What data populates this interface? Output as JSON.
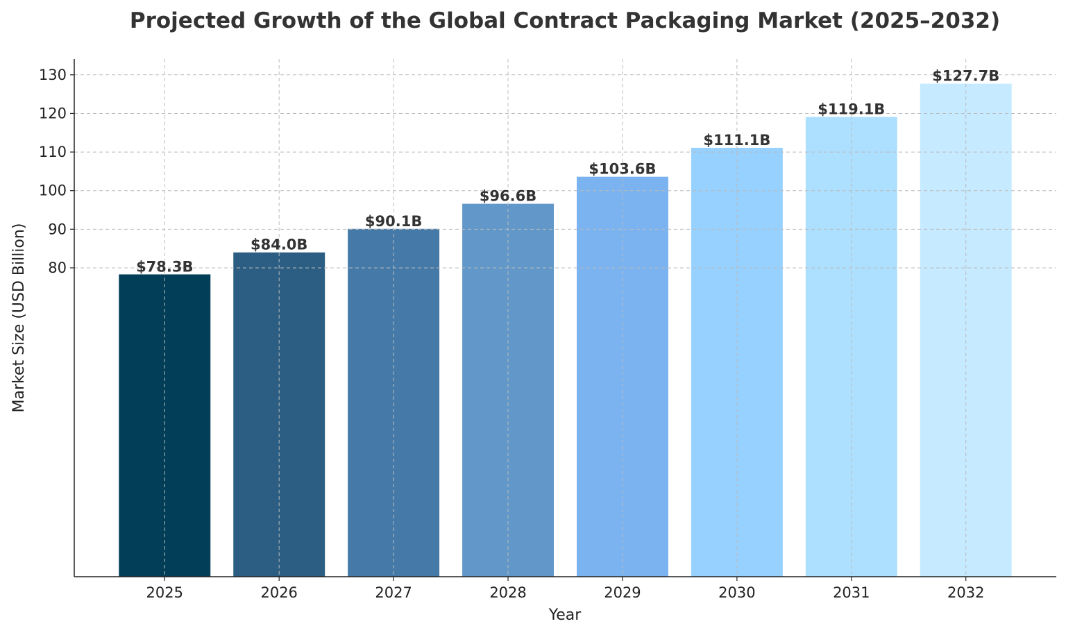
{
  "chart_data": {
    "type": "bar",
    "title": "Projected Growth of the Global Contract Packaging Market (2025–2032)",
    "xlabel": "Year",
    "ylabel": "Market Size (USD Billion)",
    "categories": [
      "2025",
      "2026",
      "2027",
      "2028",
      "2029",
      "2030",
      "2031",
      "2032"
    ],
    "values": [
      78.3,
      84.0,
      90.1,
      96.6,
      103.6,
      111.1,
      119.1,
      127.7
    ],
    "data_labels": [
      "$78.3B",
      "$84.0B",
      "$90.1B",
      "$96.6B",
      "$103.6B",
      "$111.1B",
      "$119.1B",
      "$127.7B"
    ],
    "colors": [
      "#023e58",
      "#2b5e82",
      "#457aa8",
      "#6198c9",
      "#7ab3f0",
      "#96d1ff",
      "#addfff",
      "#c6eaff"
    ],
    "yticks": [
      80,
      90,
      100,
      110,
      120,
      130
    ],
    "ylim": [
      0,
      134.1
    ],
    "grid": true
  }
}
